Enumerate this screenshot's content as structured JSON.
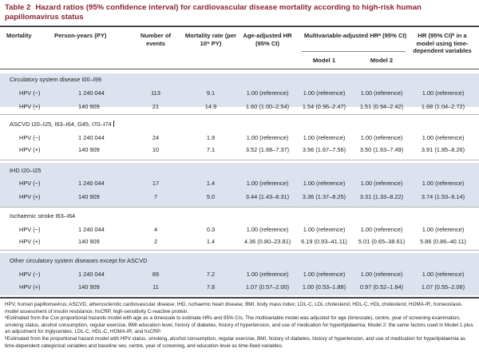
{
  "table": {
    "label": "Table 2",
    "title": "Hazard ratios (95% confidence interval) for cardiovascular disease mortality according to high-risk human papillomavirus status"
  },
  "columns": {
    "mortality": "Mortality",
    "person_years": "Person-years (PY)",
    "events": "Number of events",
    "rate": "Mortality rate (per 10⁵ PY)",
    "age_adj": "Age-adjusted HR (95% CI)",
    "multi": "Multivariable-adjusted HRᵃ (95% CI)",
    "model1": "Model 1",
    "model2": "Model 2",
    "tdv": "HR (95% CI)ᵇ in a model using time-dependent variables"
  },
  "sections": [
    {
      "name": "Circulatory system disease I00–I99",
      "rows": [
        {
          "label": "HPV (−)",
          "py": "1 240 044",
          "events": "113",
          "rate": "9.1",
          "age": "1.00 (reference)",
          "m1": "1.00 (reference)",
          "m2": "1.00 (reference)",
          "tdv": "1.00 (reference)"
        },
        {
          "label": "HPV (+)",
          "py": "140 909",
          "events": "21",
          "rate": "14.9",
          "age": "1.60 (1.00–2.54)",
          "m1": "1.54 (0.96–2.47)",
          "m2": "1.51 (0.94–2.42)",
          "tdv": "1.68 (1.04–2.72)"
        }
      ]
    },
    {
      "name": "ASCVD I20–I25, I63–I64, G45, I70–I74",
      "rows": [
        {
          "label": "HPV (−)",
          "py": "1 240 044",
          "events": "24",
          "rate": "1.9",
          "age": "1.00 (reference)",
          "m1": "1.00 (reference)",
          "m2": "1.00 (reference)",
          "tdv": "1.00 (reference)"
        },
        {
          "label": "HPV (+)",
          "py": "140 909",
          "events": "10",
          "rate": "7.1",
          "age": "3.52 (1.68–7.37)",
          "m1": "3.56 (1.67–7.56)",
          "m2": "3.50 (1.63–7.49)",
          "tdv": "3.91 (1.85–8.26)"
        }
      ]
    },
    {
      "name": "IHD I20–I25",
      "rows": [
        {
          "label": "HPV (−)",
          "py": "1 240 044",
          "events": "17",
          "rate": "1.4",
          "age": "1.00 (reference)",
          "m1": "1.00 (reference)",
          "m2": "1.00 (reference)",
          "tdv": "1.00 (reference)"
        },
        {
          "label": "HPV (+)",
          "py": "140 909",
          "events": "7",
          "rate": "5.0",
          "age": "3.44 (1.43–8.31)",
          "m1": "3.36 (1.37–8.25)",
          "m2": "3.31 (1.33–8.22)",
          "tdv": "3.74 (1.53–9.14)"
        }
      ]
    },
    {
      "name": "Ischaemic stroke I63–I64",
      "rows": [
        {
          "label": "HPV (−)",
          "py": "1 240 044",
          "events": "4",
          "rate": "0.3",
          "age": "1.00 (reference)",
          "m1": "1.00 (reference)",
          "m2": "1.00 (reference)",
          "tdv": "1.00 (reference)"
        },
        {
          "label": "HPV (+)",
          "py": "140 909",
          "events": "2",
          "rate": "1.4",
          "age": "4.36 (0.80–23.81)",
          "m1": "6.19 (0.93–41.11)",
          "m2": "5.01 (0.65–38.61)",
          "tdv": "5.86 (0.86–40.11)"
        }
      ]
    },
    {
      "name": "Other circulatory system diseases except for ASCVD",
      "rows": [
        {
          "label": "HPV (−)",
          "py": "1 240 044",
          "events": "89",
          "rate": "7.2",
          "age": "1.00 (reference)",
          "m1": "1.00 (reference)",
          "m2": "1.00 (reference)",
          "tdv": "1.00 (reference)"
        },
        {
          "label": "HPV (+)",
          "py": "140 909",
          "events": "11",
          "rate": "7.8",
          "age": "1.07 (0.57–2.00)",
          "m1": "1.00 (0.53–1.88)",
          "m2": "0.97 (0.52–1.84)",
          "tdv": "1.07 (0.55–2.06)"
        }
      ]
    }
  ],
  "footnotes": {
    "abbrev": "HPV, human papillomavirus; ASCVD, atherosclerotic cardiovascular disease; IHD, ischaemic heart disease; BMI, body mass index; LDL-C, LDL cholesterol; HDL-C, HDL cholesterol; HOMA-IR, homeostasis model assessment of insulin resistance; hsCRP, high-sensitivity C-reactive protein.",
    "a": "ᵃEstimated from the Cox proportional hazards model with age as a timescale to estimate HRs and 95% CIs. The multivariable model was adjusted for age (timescale), centre, year of screening examination, smoking status, alcohol consumption, regular exercise, BMI education level, history of diabetes, history of hypertension, and use of medication for hyperlipidaemia; Model 2: the same factors used in Model 1 plus an adjustment for triglycerides, LDL-C, HDL-C, HOMA-IR, and hsCRP.",
    "b": "ᵇEstimated from the proportional hazard model with HPV status, smoking, alcohol consumption, regular exercise, BMI, history of diabetes, history of hypertension, and use of medication for hyperlipidaemia as time-dependent categorical variables and baseline sex, centre, year of screening, and education level as time-fixed variables."
  }
}
